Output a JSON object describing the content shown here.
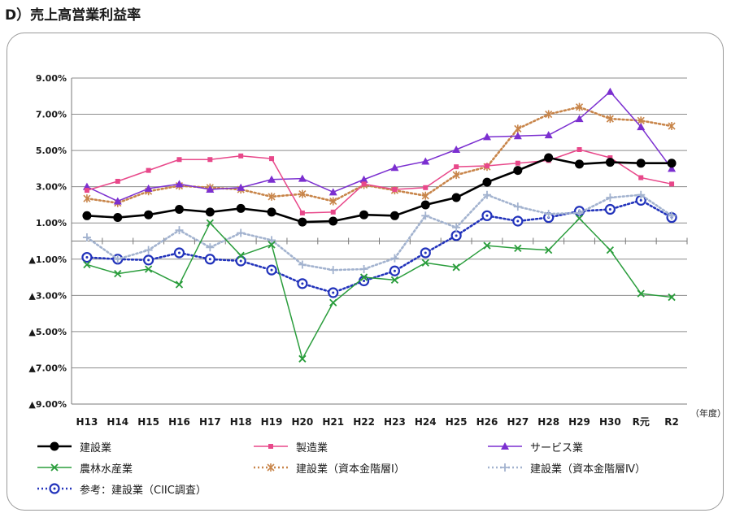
{
  "title": "D）売上高営業利益率",
  "chart_data": {
    "type": "line",
    "title": "D）売上高営業利益率",
    "x_unit": "（年度）",
    "categories": [
      "H13",
      "H14",
      "H15",
      "H16",
      "H17",
      "H18",
      "H19",
      "H20",
      "H21",
      "H22",
      "H23",
      "H24",
      "H25",
      "H26",
      "H27",
      "H28",
      "H29",
      "H30",
      "R元",
      "R2"
    ],
    "y_ticks": [
      {
        "value": 9,
        "label": "9.00%"
      },
      {
        "value": 7,
        "label": "7.00%"
      },
      {
        "value": 5,
        "label": "5.00%"
      },
      {
        "value": 3,
        "label": "3.00%"
      },
      {
        "value": 1,
        "label": "1.00%"
      },
      {
        "value": -1,
        "label": "▲1.00%"
      },
      {
        "value": -3,
        "label": "▲3.00%"
      },
      {
        "value": -5,
        "label": "▲5.00%"
      },
      {
        "value": -7,
        "label": "▲7.00%"
      },
      {
        "value": -9,
        "label": "▲9.00%"
      }
    ],
    "ylim": [
      -9,
      9
    ],
    "grid": true,
    "legend_position": "bottom",
    "series": [
      {
        "name": "建設業",
        "color": "#000000",
        "style": "solid",
        "marker": "circle",
        "values": [
          1.4,
          1.3,
          1.45,
          1.75,
          1.6,
          1.8,
          1.6,
          1.05,
          1.1,
          1.45,
          1.4,
          2.0,
          2.4,
          3.25,
          3.9,
          4.6,
          4.25,
          4.35,
          4.3,
          4.3
        ]
      },
      {
        "name": "製造業",
        "color": "#e8488a",
        "style": "solid",
        "marker": "square",
        "values": [
          2.8,
          3.3,
          3.9,
          4.5,
          4.5,
          4.7,
          4.55,
          1.55,
          1.6,
          3.15,
          2.85,
          2.95,
          4.1,
          4.15,
          4.3,
          4.45,
          5.05,
          4.6,
          3.5,
          3.15
        ]
      },
      {
        "name": "サービス業",
        "color": "#7b2fd0",
        "style": "solid",
        "marker": "triangle",
        "values": [
          3.0,
          2.2,
          2.9,
          3.15,
          2.85,
          2.95,
          3.4,
          3.45,
          2.7,
          3.4,
          4.05,
          4.4,
          5.05,
          5.75,
          5.8,
          5.85,
          6.75,
          8.25,
          6.3,
          4.0
        ]
      },
      {
        "name": "農林水産業",
        "color": "#2a9d3c",
        "style": "solid",
        "marker": "x",
        "values": [
          -1.3,
          -1.8,
          -1.55,
          -2.4,
          1.0,
          -0.8,
          -0.2,
          -6.5,
          -3.4,
          -2.0,
          -2.15,
          -1.2,
          -1.45,
          -0.25,
          -0.4,
          -0.5,
          1.25,
          -0.5,
          -2.9,
          -3.1
        ]
      },
      {
        "name": "建設業（資本金階層Ⅰ）",
        "color": "#c8854a",
        "style": "dotted",
        "marker": "asterisk",
        "values": [
          2.35,
          2.1,
          2.75,
          3.05,
          2.95,
          2.85,
          2.45,
          2.6,
          2.2,
          3.1,
          2.8,
          2.5,
          3.65,
          4.1,
          6.2,
          7.0,
          7.4,
          6.75,
          6.65,
          6.35
        ]
      },
      {
        "name": "建設業（資本金階層Ⅳ）",
        "color": "#a3b3cf",
        "style": "dotted",
        "marker": "plus",
        "values": [
          0.2,
          -1.0,
          -0.5,
          0.6,
          -0.35,
          0.45,
          0.05,
          -1.3,
          -1.6,
          -1.55,
          -0.95,
          1.4,
          0.75,
          2.55,
          1.9,
          1.5,
          1.55,
          2.4,
          2.55,
          1.4
        ]
      },
      {
        "name": "参考：建設業（CIIC調査）",
        "color": "#2233bb",
        "style": "dotted",
        "marker": "ring",
        "values": [
          -0.9,
          -1.0,
          -1.05,
          -0.65,
          -1.0,
          -1.1,
          -1.6,
          -2.35,
          -2.85,
          -2.2,
          -1.65,
          -0.65,
          0.3,
          1.4,
          1.1,
          1.3,
          1.65,
          1.75,
          2.25,
          1.3
        ]
      }
    ]
  }
}
